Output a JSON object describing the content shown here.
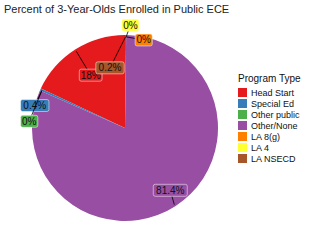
{
  "chart_data": {
    "type": "pie",
    "title": "Percent of 3-Year-Olds Enrolled in Public ECE",
    "legend_title": "Program Type",
    "categories": [
      "Head Start",
      "Special Ed",
      "Other public",
      "Other/None",
      "LA 8(g)",
      "LA 4",
      "LA NSECD"
    ],
    "values": [
      18,
      0.4,
      0,
      81.4,
      0,
      0,
      0.2
    ],
    "value_labels": [
      "18%",
      "0.4%",
      "0%",
      "81.4%",
      "0%",
      "0%",
      "0.2%"
    ],
    "colors": [
      "#e41a1c",
      "#377eb8",
      "#4daf4a",
      "#984ea3",
      "#ff7f00",
      "#ffff33",
      "#a65628"
    ],
    "data_labels": true,
    "legend": "right"
  }
}
